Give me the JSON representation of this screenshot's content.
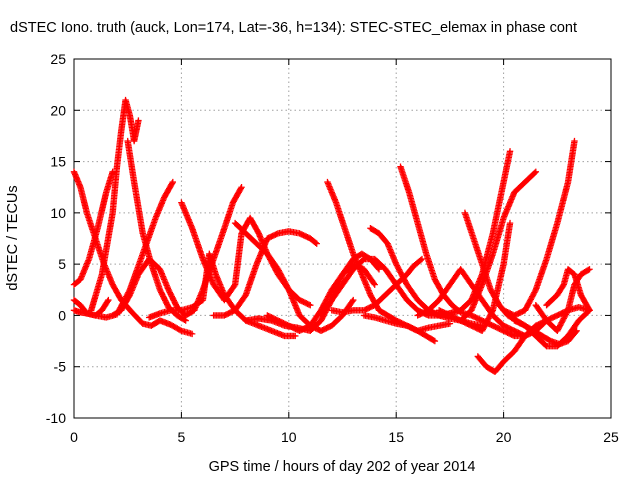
{
  "chart_data": {
    "type": "scatter",
    "title": "dSTEC Iono. truth (auck, Lon=174, Lat=-36, h=134): STEC-STEC_elemax in phase cont",
    "xlabel": "GPS time / hours of day 202 of year 2014",
    "ylabel": "dSTEC  / TECUs",
    "xlim": [
      0,
      25
    ],
    "ylim": [
      -10,
      25
    ],
    "xticks": [
      0,
      5,
      10,
      15,
      20,
      25
    ],
    "yticks": [
      -10,
      -5,
      0,
      5,
      10,
      15,
      20,
      25
    ],
    "grid": true,
    "legend": "none",
    "marker": "plus",
    "color": "#ff0000",
    "series": [
      {
        "x": [
          0.0,
          0.3,
          0.6,
          1.0,
          1.5,
          2.0,
          2.6,
          3.2,
          3.8,
          4.2,
          4.6
        ],
        "y": [
          0.5,
          0.3,
          0.2,
          0.0,
          -0.2,
          0.1,
          2.5,
          6.0,
          9.5,
          11.5,
          13.0
        ]
      },
      {
        "x": [
          0.0,
          0.3,
          0.6,
          1.0,
          1.4,
          1.8,
          2.2,
          2.7,
          3.2,
          3.6,
          4.0,
          4.5,
          5.0,
          5.5
        ],
        "y": [
          14.0,
          12.5,
          10.0,
          7.5,
          5.0,
          3.0,
          1.5,
          0.3,
          -0.8,
          -1.0,
          -0.5,
          -0.9,
          -1.5,
          -1.8
        ]
      },
      {
        "x": [
          0.0,
          0.3,
          0.7,
          1.1,
          1.5,
          1.8
        ],
        "y": [
          3.0,
          3.5,
          5.5,
          8.5,
          12.0,
          14.0
        ]
      },
      {
        "x": [
          0.0,
          0.3,
          0.6,
          1.0,
          1.3,
          1.6
        ],
        "y": [
          1.5,
          1.0,
          0.2,
          0.0,
          0.5,
          1.5
        ]
      },
      {
        "x": [
          0.8,
          1.3,
          1.8,
          2.0,
          2.2,
          2.4,
          2.6,
          2.8,
          3.0
        ],
        "y": [
          0.5,
          4.0,
          10.0,
          14.5,
          18.0,
          21.0,
          19.5,
          17.0,
          19.0
        ]
      },
      {
        "x": [
          2.5,
          2.8,
          3.2,
          3.6,
          4.0,
          4.4,
          4.8,
          5.2
        ],
        "y": [
          17.0,
          13.0,
          8.0,
          5.0,
          2.5,
          0.8,
          0.0,
          -0.5
        ]
      },
      {
        "x": [
          1.8,
          2.2,
          2.6,
          3.0,
          3.5,
          4.0,
          4.4,
          4.8,
          5.2,
          5.6,
          6.0,
          6.5,
          7.0,
          7.4,
          7.8
        ],
        "y": [
          0.0,
          0.5,
          2.0,
          4.0,
          5.5,
          4.5,
          2.5,
          0.8,
          0.0,
          0.5,
          2.5,
          5.5,
          8.5,
          11.0,
          12.5
        ]
      },
      {
        "x": [
          3.5,
          4.0,
          4.5,
          5.0,
          5.5,
          6.0,
          6.3,
          6.6,
          7.0,
          7.5,
          8.0,
          8.6,
          9.2,
          9.8,
          10.3
        ],
        "y": [
          -0.2,
          0.2,
          0.5,
          0.5,
          0.8,
          1.5,
          6.0,
          4.0,
          2.0,
          0.5,
          -0.5,
          -1.0,
          -1.5,
          -2.0,
          -2.0
        ]
      },
      {
        "x": [
          5.0,
          5.5,
          6.0,
          6.5,
          7.0,
          7.5,
          7.8,
          8.2,
          8.6,
          9.0,
          9.5,
          10.0,
          10.5,
          11.0
        ],
        "y": [
          11.0,
          8.5,
          5.5,
          3.0,
          1.5,
          3.0,
          8.0,
          9.5,
          8.0,
          6.0,
          4.0,
          2.5,
          1.5,
          1.0
        ]
      },
      {
        "x": [
          6.5,
          7.0,
          7.5,
          8.0,
          8.5,
          9.0,
          9.5,
          10.0,
          10.5,
          11.0,
          11.3
        ],
        "y": [
          0.0,
          0.0,
          0.5,
          2.0,
          5.0,
          7.5,
          8.0,
          8.2,
          8.0,
          7.5,
          7.0
        ]
      },
      {
        "x": [
          7.5,
          8.0,
          8.5,
          9.0,
          9.5,
          10.0,
          10.5,
          11.0,
          11.5,
          12.0,
          12.5,
          13.0
        ],
        "y": [
          9.0,
          8.0,
          7.0,
          6.0,
          4.5,
          2.5,
          0.0,
          -1.0,
          -1.5,
          -1.0,
          0.0,
          1.5
        ]
      },
      {
        "x": [
          8.0,
          8.6,
          9.2,
          9.8,
          10.4,
          11.0,
          11.5,
          12.0,
          12.5,
          13.0,
          13.4,
          13.8,
          14.2
        ],
        "y": [
          -0.5,
          -0.3,
          -0.5,
          -1.0,
          -1.2,
          -1.5,
          -0.5,
          1.5,
          4.0,
          5.5,
          6.0,
          5.5,
          4.5
        ]
      },
      {
        "x": [
          9.0,
          9.5,
          10.0,
          10.5,
          11.0,
          11.5,
          12.0,
          12.5,
          13.0,
          13.5,
          14.0
        ],
        "y": [
          0.0,
          -0.5,
          -1.0,
          -1.5,
          -1.0,
          0.5,
          2.5,
          4.0,
          5.0,
          4.5,
          3.0
        ]
      },
      {
        "x": [
          11.8,
          12.2,
          12.6,
          13.0,
          13.4,
          13.8,
          14.2,
          14.6,
          15.0,
          15.5,
          16.0,
          16.5,
          17.0,
          17.5
        ],
        "y": [
          13.0,
          11.0,
          8.5,
          6.0,
          4.0,
          2.0,
          0.5,
          0.0,
          -0.5,
          -1.0,
          -1.5,
          -1.2,
          -1.0,
          -0.8
        ]
      },
      {
        "x": [
          11.5,
          12.0,
          12.5,
          13.0,
          13.5,
          14.0,
          14.5,
          15.0,
          15.5,
          16.0,
          16.5,
          17.0,
          17.5,
          18.0
        ],
        "y": [
          0.0,
          1.5,
          3.0,
          4.5,
          5.5,
          5.5,
          4.5,
          3.0,
          1.5,
          0.5,
          0.0,
          0.0,
          0.2,
          0.5
        ]
      },
      {
        "x": [
          12.0,
          12.5,
          13.0,
          13.5,
          14.0,
          14.5,
          15.0,
          15.5,
          15.8,
          16.2
        ],
        "y": [
          0.5,
          0.3,
          0.5,
          0.5,
          1.0,
          2.0,
          3.0,
          4.0,
          4.8,
          5.5
        ]
      },
      {
        "x": [
          13.5,
          14.0,
          14.5,
          15.0,
          15.5,
          16.0,
          16.4,
          16.8
        ],
        "y": [
          0.0,
          -0.2,
          -0.5,
          -0.8,
          -1.0,
          -1.5,
          -2.0,
          -2.5
        ]
      },
      {
        "x": [
          13.8,
          14.2,
          14.6,
          15.0,
          15.5,
          16.0,
          16.5,
          17.0,
          17.5,
          18.0,
          18.5,
          19.0
        ],
        "y": [
          8.5,
          8.0,
          7.0,
          5.0,
          3.0,
          1.5,
          0.5,
          0.0,
          -0.3,
          -0.5,
          -0.8,
          -1.0
        ]
      },
      {
        "x": [
          15.2,
          15.6,
          16.0,
          16.4,
          16.8,
          17.2,
          17.6,
          18.0,
          18.5,
          19.0,
          19.5,
          20.0,
          20.5,
          21.0,
          21.5,
          22.0
        ],
        "y": [
          14.5,
          12.0,
          9.0,
          6.0,
          3.5,
          2.0,
          1.0,
          0.3,
          0.0,
          -0.5,
          -1.0,
          -1.5,
          -2.0,
          -2.0,
          -1.5,
          -0.5
        ]
      },
      {
        "x": [
          16.0,
          16.5,
          17.0,
          17.5,
          18.0,
          18.5,
          19.0,
          19.5,
          20.0,
          20.5,
          21.0
        ],
        "y": [
          0.0,
          0.5,
          1.5,
          3.0,
          4.5,
          3.0,
          1.5,
          0.0,
          -1.0,
          -1.5,
          -2.0
        ]
      },
      {
        "x": [
          16.5,
          17.0,
          17.5,
          18.0,
          18.5,
          19.0,
          19.5,
          20.0,
          20.3
        ],
        "y": [
          0.5,
          0.0,
          0.2,
          0.5,
          1.5,
          4.0,
          8.0,
          13.0,
          16.0
        ]
      },
      {
        "x": [
          17.0,
          17.5,
          18.0,
          18.5,
          19.0,
          19.5,
          20.0,
          20.3
        ],
        "y": [
          0.5,
          0.0,
          -0.5,
          -1.0,
          -1.5,
          0.5,
          5.0,
          9.0
        ]
      },
      {
        "x": [
          18.0,
          18.5,
          19.0,
          19.5,
          20.0,
          20.5,
          21.0,
          21.5
        ],
        "y": [
          -0.5,
          0.5,
          3.0,
          6.0,
          9.5,
          12.0,
          13.0,
          14.0
        ]
      },
      {
        "x": [
          18.2,
          18.6,
          19.0,
          19.4,
          19.8,
          20.2,
          20.6,
          21.0,
          21.4,
          21.8,
          22.2,
          22.6,
          23.0,
          23.4
        ],
        "y": [
          10.0,
          7.5,
          5.0,
          2.5,
          1.0,
          0.0,
          -0.5,
          -1.0,
          -1.5,
          -2.0,
          -2.5,
          -2.8,
          -2.5,
          -1.5
        ]
      },
      {
        "x": [
          18.8,
          19.2,
          19.6,
          20.0,
          20.5,
          21.0,
          21.5,
          22.0,
          22.5,
          23.0,
          23.5,
          24.0
        ],
        "y": [
          -4.0,
          -5.0,
          -5.5,
          -4.5,
          -3.5,
          -2.0,
          -1.0,
          -0.5,
          0.0,
          0.5,
          0.8,
          0.5
        ]
      },
      {
        "x": [
          20.0,
          20.5,
          21.0,
          21.5,
          22.0,
          22.5,
          23.0,
          23.3
        ],
        "y": [
          0.5,
          0.0,
          0.5,
          2.5,
          5.5,
          9.0,
          13.0,
          17.0
        ]
      },
      {
        "x": [
          20.5,
          21.0,
          21.5,
          22.0,
          22.5,
          23.0,
          23.5,
          24.0
        ],
        "y": [
          -0.5,
          -1.0,
          -2.0,
          -3.0,
          -3.0,
          -2.0,
          -0.5,
          0.5
        ]
      },
      {
        "x": [
          21.5,
          22.0,
          22.5,
          23.0,
          23.3,
          23.6,
          24.0
        ],
        "y": [
          1.0,
          -0.5,
          -1.5,
          0.5,
          3.0,
          4.0,
          4.5
        ]
      },
      {
        "x": [
          22.0,
          22.5,
          22.8,
          23.0,
          23.3,
          23.6,
          24.0
        ],
        "y": [
          1.0,
          2.0,
          3.0,
          4.5,
          4.0,
          2.0,
          0.5
        ]
      }
    ]
  }
}
